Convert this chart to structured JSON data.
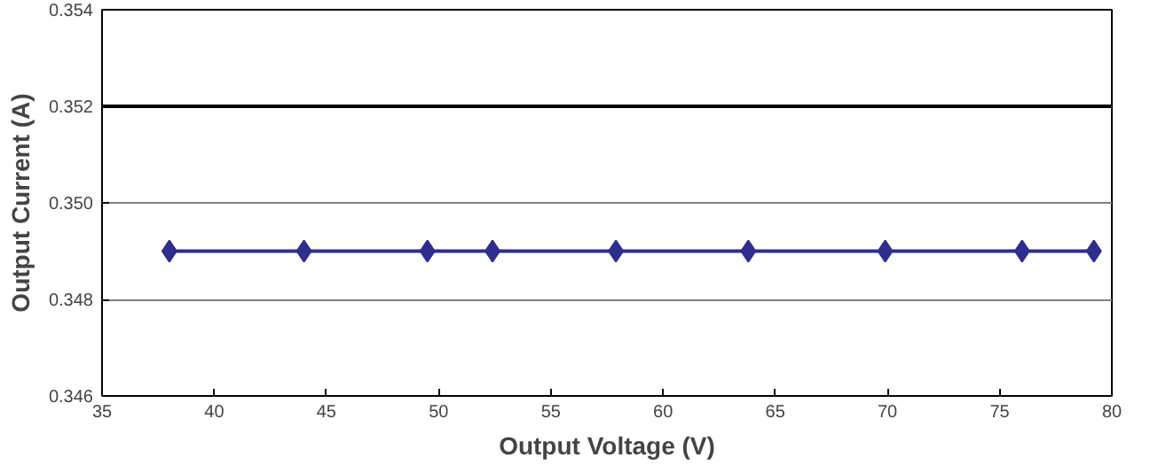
{
  "chart_data": {
    "type": "line",
    "xlabel": "Output Voltage (V)",
    "ylabel": "Output Current (A)",
    "x": [
      38,
      44,
      49.5,
      52.4,
      57.9,
      63.8,
      69.9,
      76,
      79.2
    ],
    "series": [
      {
        "color": "#2e2e8f",
        "values": [
          0.349,
          0.349,
          0.349,
          0.349,
          0.349,
          0.349,
          0.349,
          0.349,
          0.349
        ]
      }
    ],
    "xlim": [
      35,
      80
    ],
    "xticks": [
      35,
      40,
      45,
      50,
      55,
      60,
      65,
      70,
      75,
      80
    ],
    "ylim": [
      0.346,
      0.354
    ],
    "yticks": [
      0.346,
      0.348,
      {
        "value": 0.35,
        "label": "0.350"
      },
      0.352,
      0.354
    ],
    "ref_lines": [
      {
        "axis": "y",
        "value": 0.352,
        "color": "#000000"
      }
    ],
    "grid": "y",
    "marker": "diamond",
    "line_style": "solid"
  }
}
